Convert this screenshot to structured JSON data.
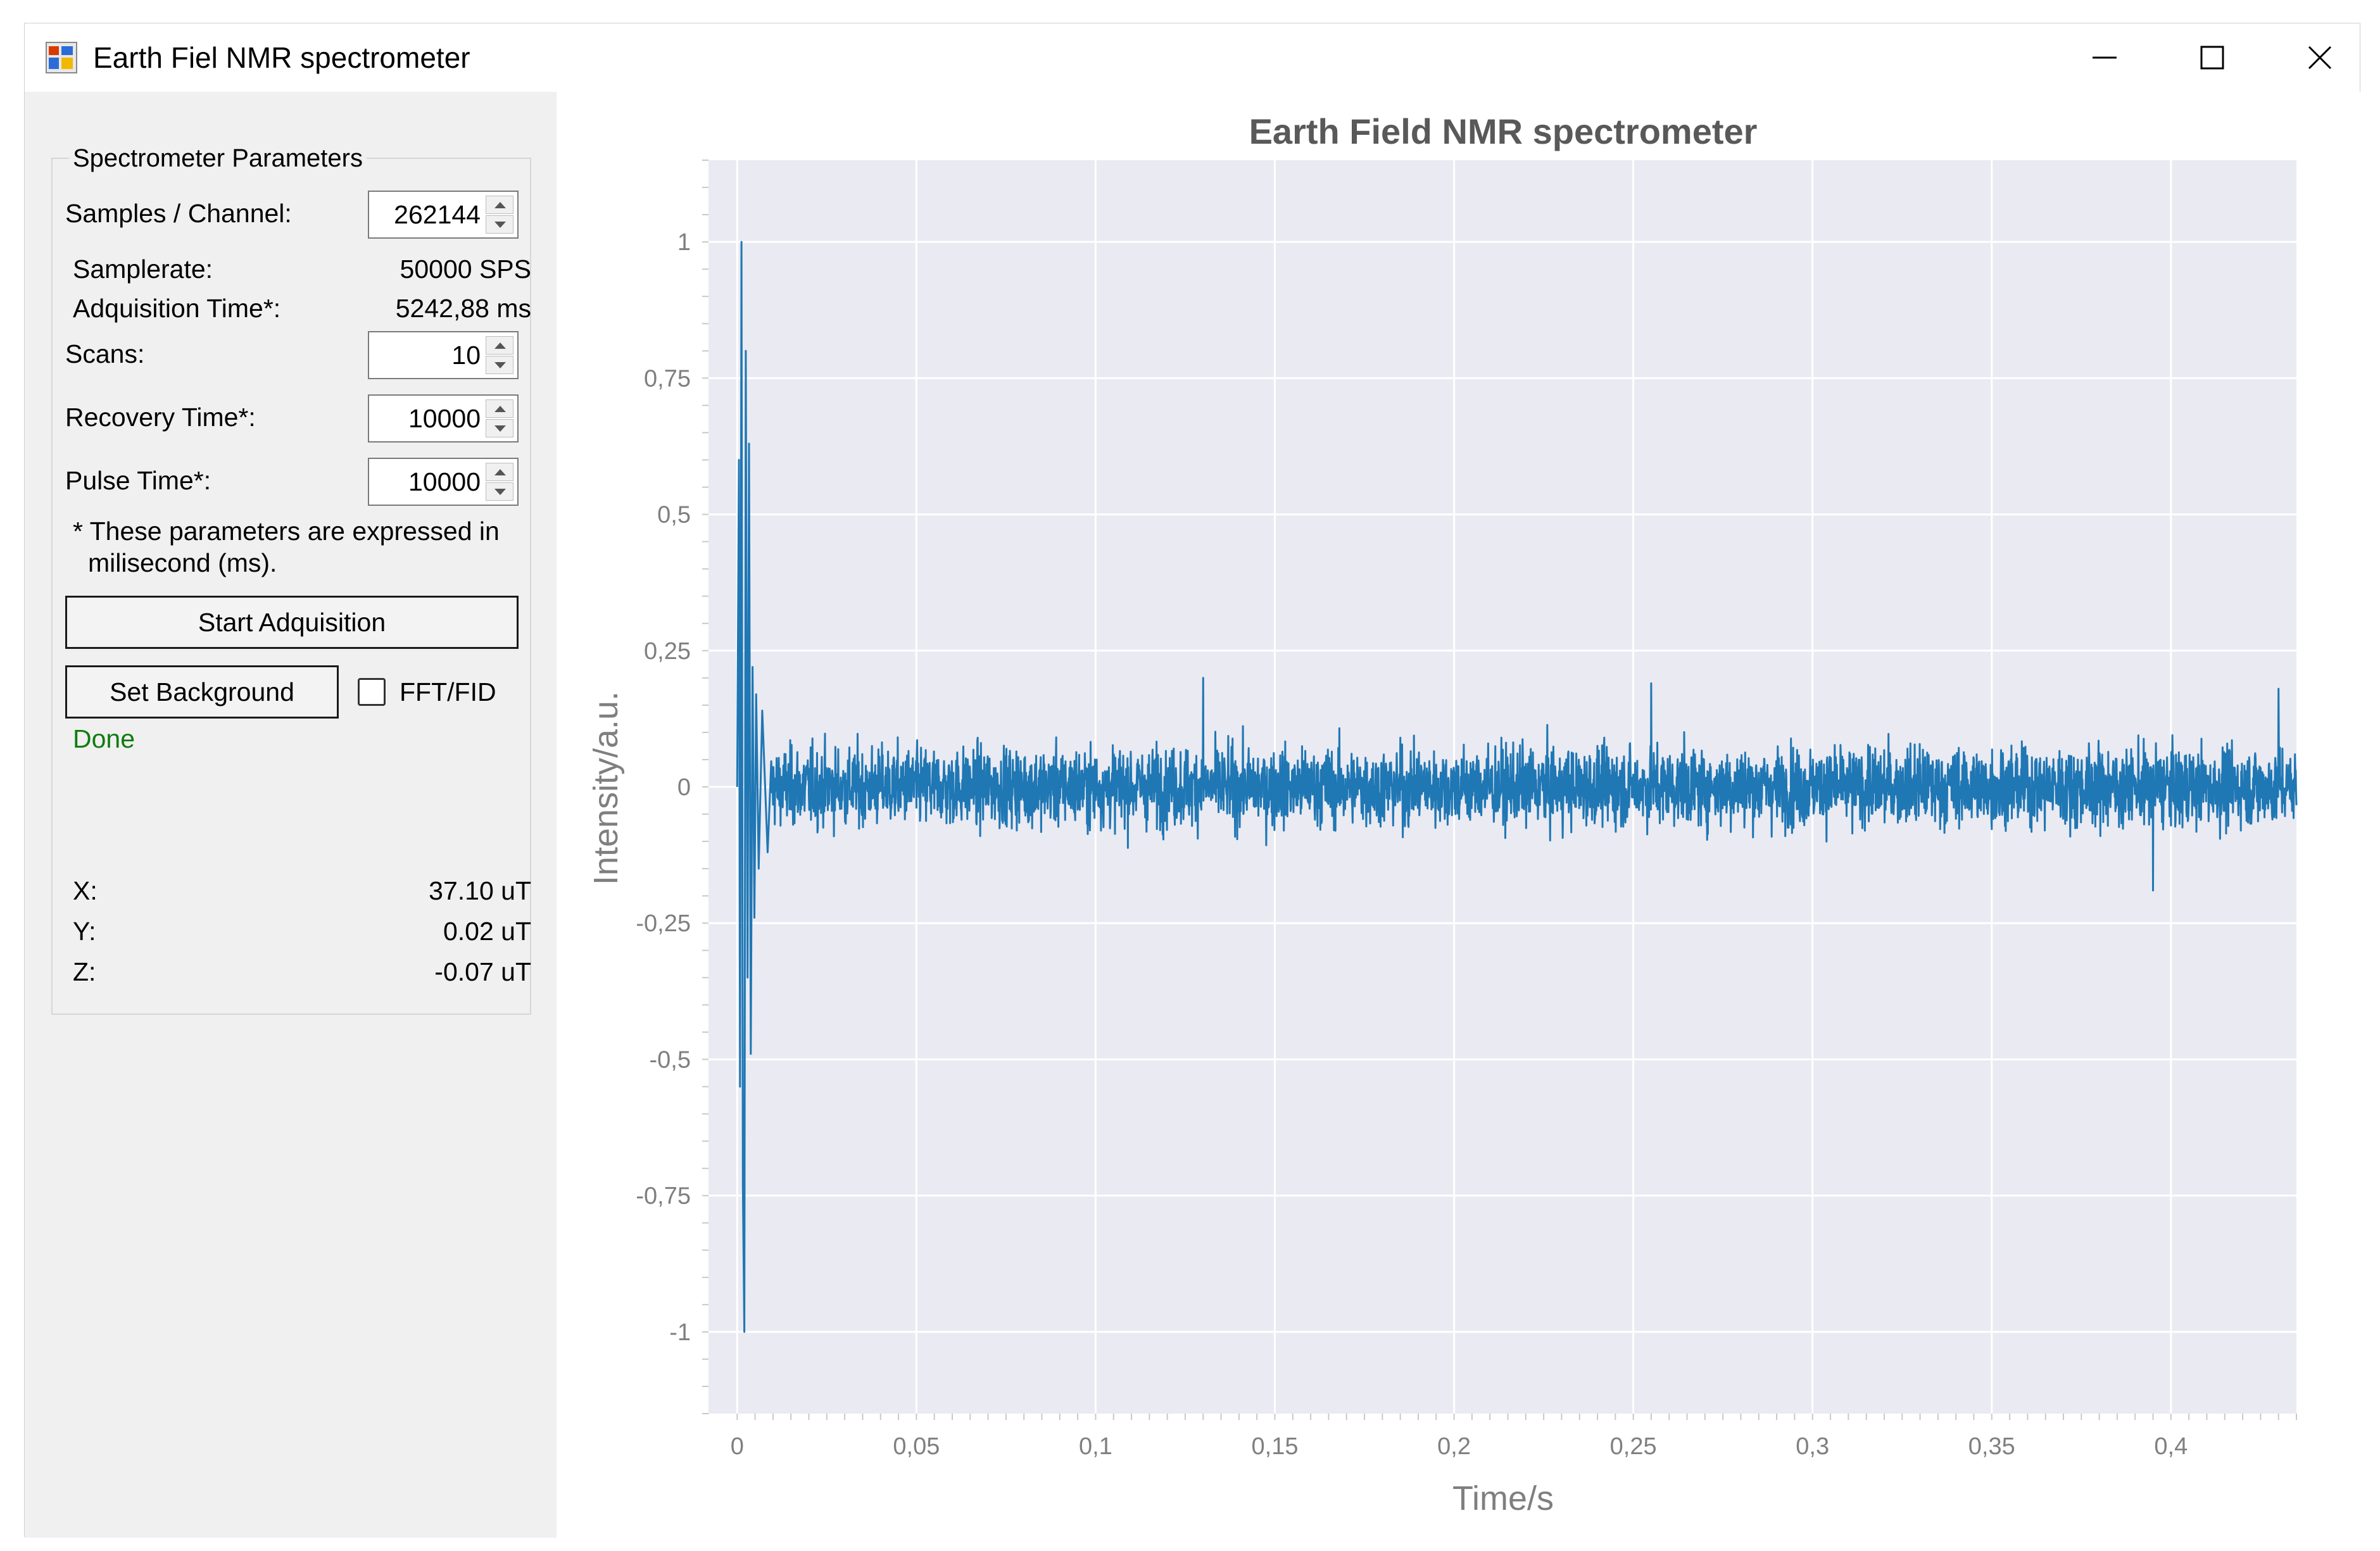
{
  "window": {
    "title": "Earth Fiel NMR spectrometer",
    "controls": {
      "minimize": "minimize-icon",
      "maximize": "maximize-icon",
      "close": "close-icon"
    }
  },
  "params": {
    "group_title": "Spectrometer Parameters",
    "samples_label": "Samples / Channel:",
    "samples_value": "262144",
    "samplerate_label": "Samplerate:",
    "samplerate_value": "50000 SPS",
    "acq_time_label": "Adquisition Time*:",
    "acq_time_value": "5242,88 ms",
    "scans_label": "Scans:",
    "scans_value": "10",
    "recovery_label": "Recovery Time*:",
    "recovery_value": "10000",
    "pulse_label": "Pulse Time*:",
    "pulse_value": "10000",
    "note_line1": "* These parameters are expressed in",
    "note_line2": "milisecond (ms).",
    "start_button": "Start Adquisition",
    "background_button": "Set Background",
    "fft_label": "FFT/FID",
    "fft_checked": false,
    "status": "Done",
    "status_color": "#107c10"
  },
  "field": {
    "x_label": "X:",
    "x_value": "37.10 uT",
    "y_label": "Y:",
    "y_value": "0.02 uT",
    "z_label": "Z:",
    "z_value": "-0.07 uT"
  },
  "chart_data": {
    "type": "line",
    "title": "Earth Field NMR spectrometer",
    "xlabel": "Time/s",
    "ylabel": "Intensity/a.u.",
    "xlim": [
      -0.008,
      0.435
    ],
    "ylim": [
      -1.15,
      1.15
    ],
    "x_ticks": [
      0,
      0.05,
      0.1,
      0.15,
      0.2,
      0.25,
      0.3,
      0.35,
      0.4
    ],
    "x_tick_labels": [
      "0",
      "0,05",
      "0,1",
      "0,15",
      "0,2",
      "0,25",
      "0,3",
      "0,35",
      "0,4"
    ],
    "y_ticks": [
      1,
      0.75,
      0.5,
      0.25,
      0,
      -0.25,
      -0.5,
      -0.75,
      -1
    ],
    "y_tick_labels": [
      "1",
      "0,75",
      "0,5",
      "0,25",
      "0",
      "-0,25",
      "-0,5",
      "-0,75",
      "-1"
    ],
    "grid": true,
    "colors": {
      "line": "#1f77b4",
      "plot_bg": "#eaeaf2",
      "grid": "#ffffff",
      "text": "#7f7f7f"
    },
    "series": [
      {
        "peaks": [
          {
            "x": 0.0005,
            "y": 0.6
          },
          {
            "x": 0.0008,
            "y": -0.55
          },
          {
            "x": 0.0012,
            "y": 1.0
          },
          {
            "x": 0.0016,
            "y": -0.73
          },
          {
            "x": 0.002,
            "y": -1.0
          },
          {
            "x": 0.0024,
            "y": 0.8
          },
          {
            "x": 0.0029,
            "y": -0.35
          },
          {
            "x": 0.0033,
            "y": 0.63
          },
          {
            "x": 0.0038,
            "y": -0.49
          },
          {
            "x": 0.0043,
            "y": 0.22
          },
          {
            "x": 0.0048,
            "y": -0.24
          },
          {
            "x": 0.0053,
            "y": 0.17
          },
          {
            "x": 0.006,
            "y": -0.15
          },
          {
            "x": 0.007,
            "y": 0.14
          },
          {
            "x": 0.0085,
            "y": -0.12
          },
          {
            "x": 0.13,
            "y": 0.2
          },
          {
            "x": 0.255,
            "y": 0.19
          },
          {
            "x": 0.395,
            "y": -0.19
          },
          {
            "x": 0.43,
            "y": 0.18
          }
        ],
        "noise_amplitude": 0.05,
        "noise_max": 0.18,
        "end_x": 0.435
      }
    ]
  }
}
